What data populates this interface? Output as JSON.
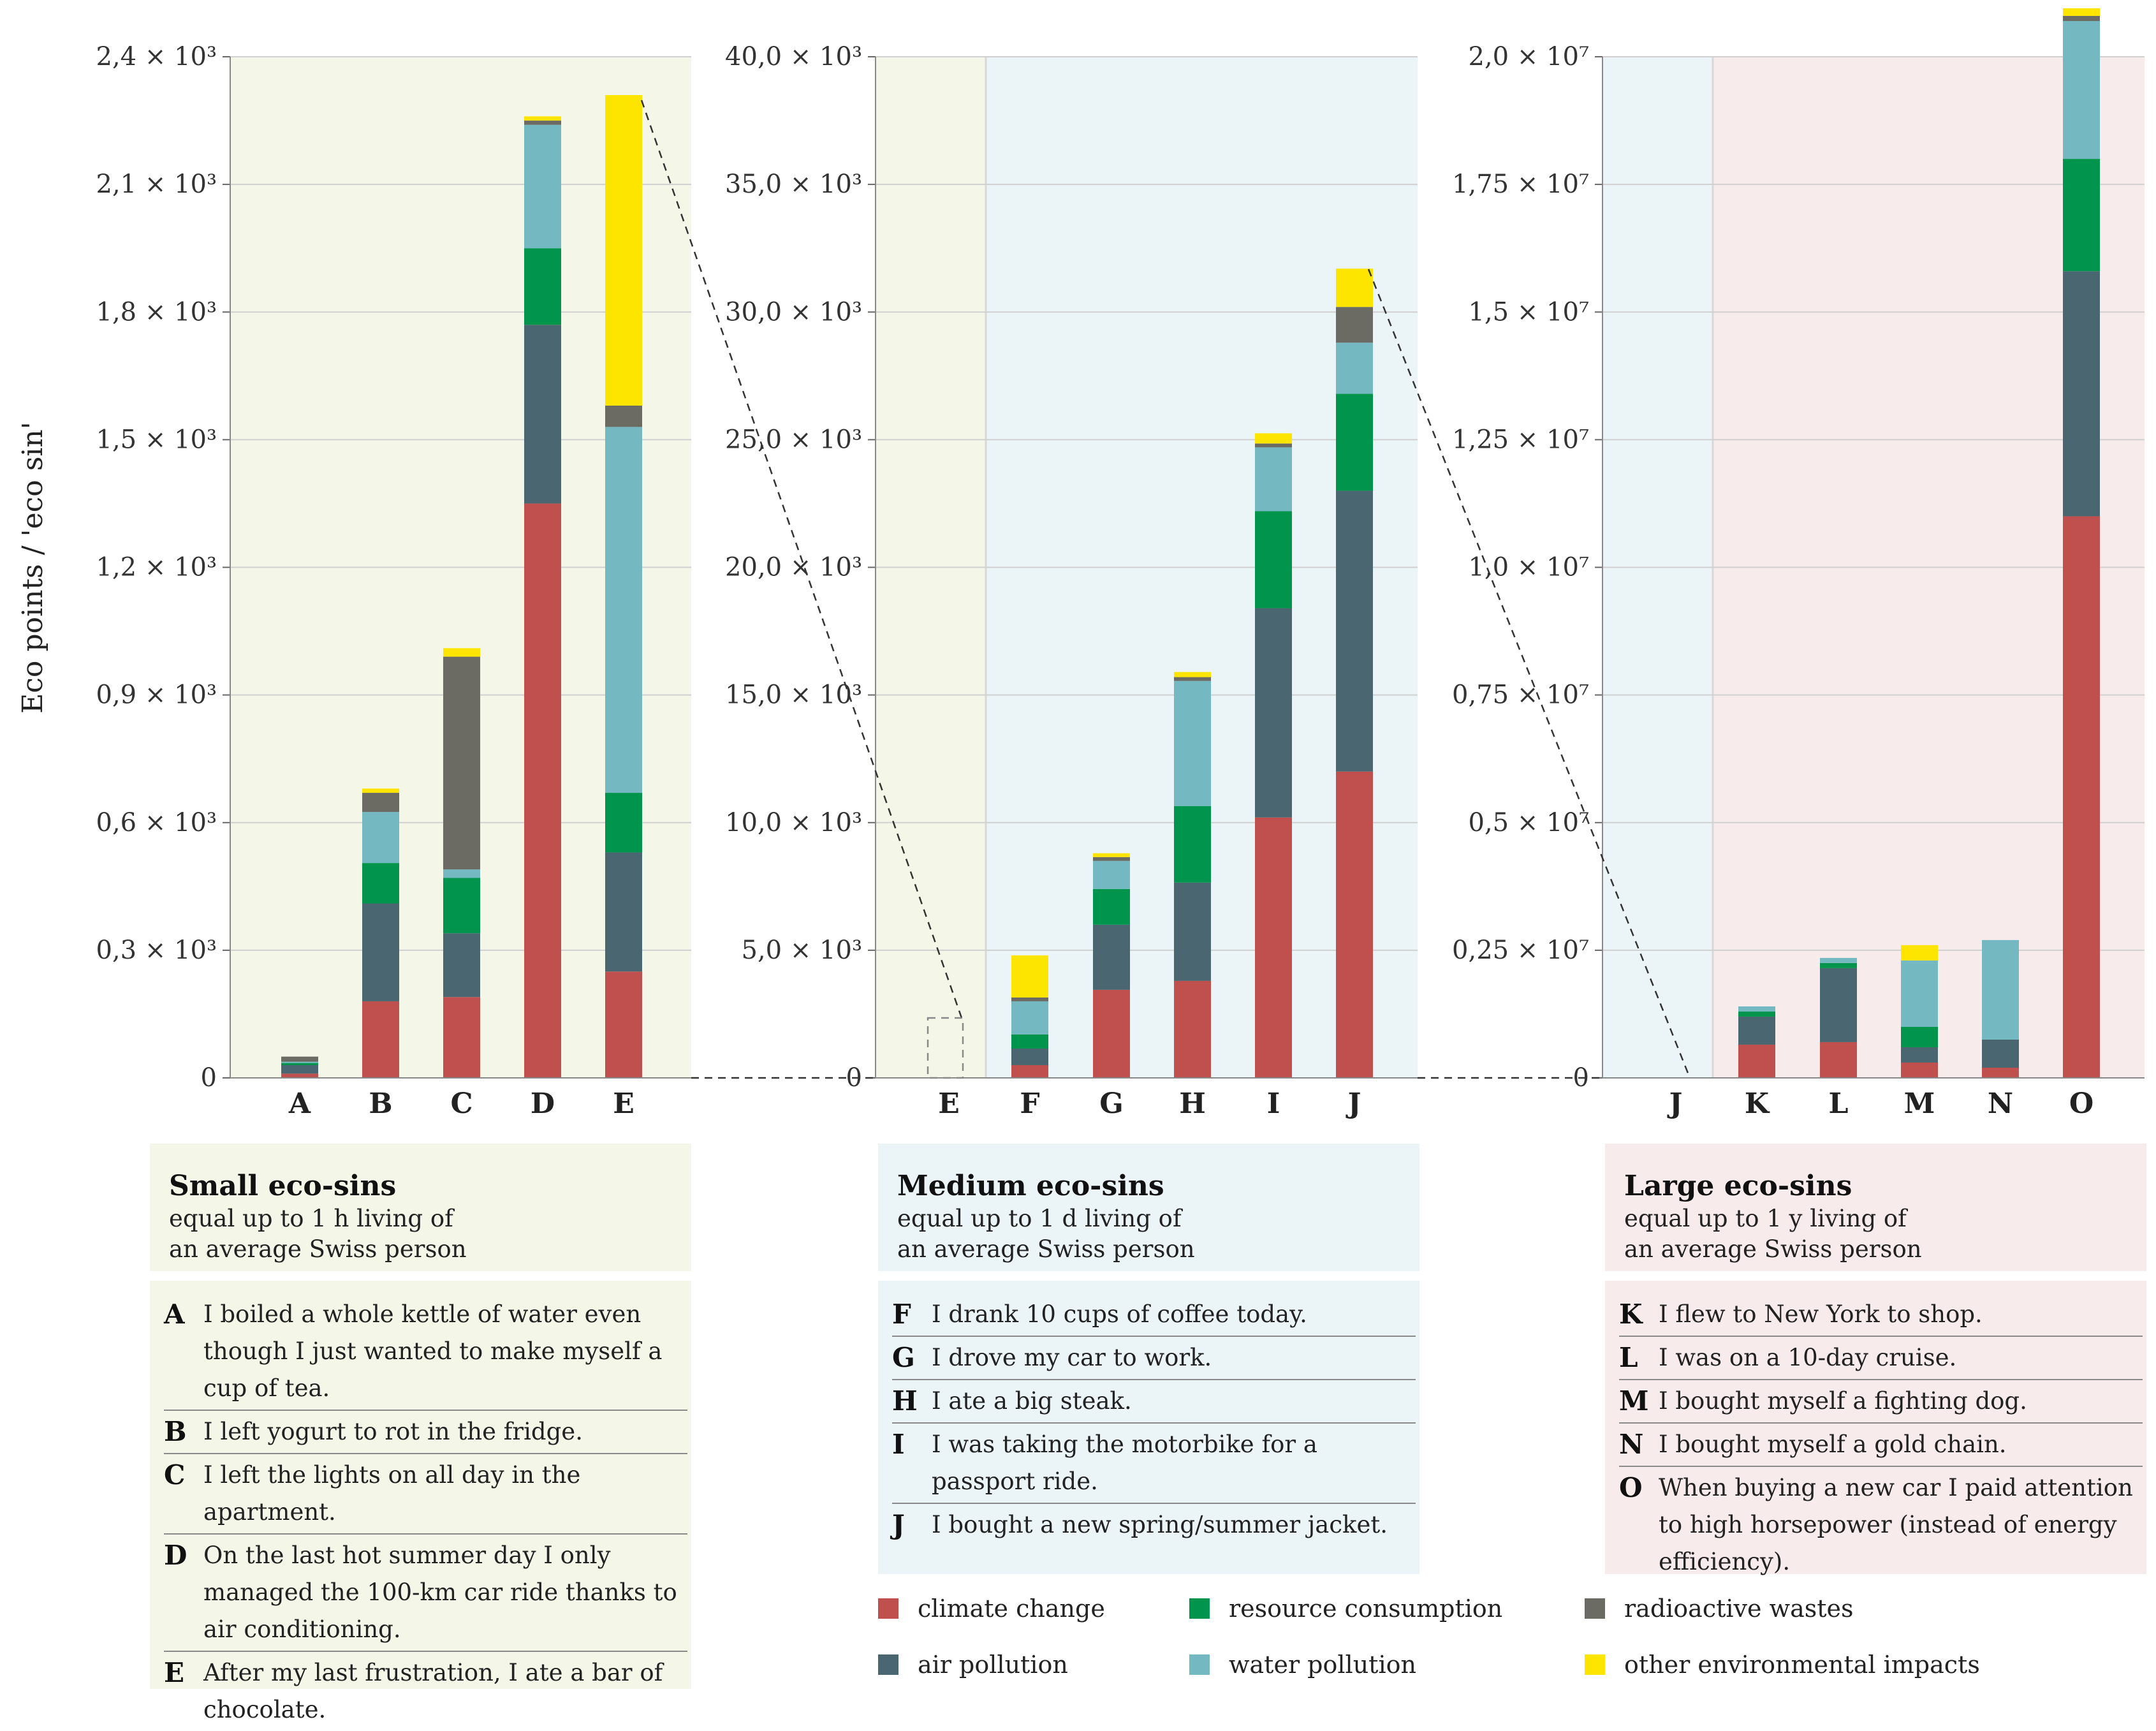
{
  "chart_data": {
    "type": "bar",
    "stacked": true,
    "ylabel": "Eco points / 'eco sin'",
    "series_names": [
      "climate change",
      "air pollution",
      "resource consumption",
      "water pollution",
      "radioactive wastes",
      "other environmental impacts"
    ],
    "colors": {
      "climate change": "#c0504d",
      "air pollution": "#4a6670",
      "resource consumption": "#00944c",
      "water pollution": "#74b9c2",
      "radioactive wastes": "#6b6b64",
      "other environmental impacts": "#fde500"
    },
    "panels": [
      {
        "name": "small",
        "ylim": [
          0,
          2400
        ],
        "ticks": [
          0,
          300,
          600,
          900,
          1200,
          1500,
          1800,
          2100,
          2400
        ],
        "tick_labels": [
          "0",
          "0,3 × 10³",
          "0,6 × 10³",
          "0,9 × 10³",
          "1,2 × 10³",
          "1,5 × 10³",
          "1,8 × 10³",
          "2,1 × 10³",
          "2,4 × 10³"
        ],
        "categories": [
          "A",
          "B",
          "C",
          "D",
          "E"
        ],
        "series": [
          {
            "name": "climate change",
            "values": [
              10,
              180,
              190,
              1350,
              250
            ]
          },
          {
            "name": "air pollution",
            "values": [
              20,
              230,
              150,
              420,
              280
            ]
          },
          {
            "name": "resource consumption",
            "values": [
              5,
              95,
              130,
              180,
              140
            ]
          },
          {
            "name": "water pollution",
            "values": [
              3,
              120,
              20,
              290,
              860
            ]
          },
          {
            "name": "radioactive wastes",
            "values": [
              12,
              45,
              500,
              10,
              50
            ]
          },
          {
            "name": "other environmental impacts",
            "values": [
              0,
              10,
              20,
              10,
              730
            ]
          }
        ]
      },
      {
        "name": "medium",
        "ylim": [
          0,
          40000
        ],
        "ticks": [
          0,
          5000,
          10000,
          15000,
          20000,
          25000,
          30000,
          35000,
          40000
        ],
        "tick_labels": [
          "0",
          "5,0 × 10³",
          "10,0 × 10³",
          "15,0 × 10³",
          "20,0 × 10³",
          "25,0 × 10³",
          "30,0 × 10³",
          "35,0 × 10³",
          "40,0 × 10³"
        ],
        "categories": [
          "E",
          "F",
          "G",
          "H",
          "I",
          "J"
        ],
        "series": [
          {
            "name": "climate change",
            "values": [
              0,
              500,
              3450,
              3800,
              10200,
              12000
            ]
          },
          {
            "name": "air pollution",
            "values": [
              0,
              650,
              2550,
              3850,
              8200,
              11000
            ]
          },
          {
            "name": "resource consumption",
            "values": [
              0,
              550,
              1400,
              3000,
              3800,
              3800
            ]
          },
          {
            "name": "water pollution",
            "values": [
              0,
              1300,
              1100,
              4900,
              2500,
              2000
            ]
          },
          {
            "name": "radioactive wastes",
            "values": [
              0,
              150,
              150,
              150,
              150,
              1400
            ]
          },
          {
            "name": "other environmental impacts",
            "values": [
              0,
              1650,
              150,
              200,
              400,
              1500
            ]
          }
        ]
      },
      {
        "name": "large",
        "ylim": [
          0,
          20000000
        ],
        "ticks": [
          0,
          2500000,
          5000000,
          7500000,
          10000000,
          12500000,
          15000000,
          17500000,
          20000000
        ],
        "tick_labels": [
          "0",
          "0,25 × 10⁷",
          "0,5 × 10⁷",
          "0,75 × 10⁷",
          "1,0 × 10⁷",
          "1,25 × 10⁷",
          "1,5 × 10⁷",
          "1,75 × 10⁷",
          "2,0 × 10⁷"
        ],
        "categories": [
          "J",
          "K",
          "L",
          "M",
          "N",
          "O"
        ],
        "series": [
          {
            "name": "climate change",
            "values": [
              0,
              650000,
              700000,
              300000,
              200000,
              11000000
            ]
          },
          {
            "name": "air pollution",
            "values": [
              0,
              550000,
              1450000,
              300000,
              550000,
              4800000
            ]
          },
          {
            "name": "resource consumption",
            "values": [
              0,
              100000,
              100000,
              400000,
              0,
              2200000
            ]
          },
          {
            "name": "water pollution",
            "values": [
              0,
              100000,
              100000,
              1300000,
              1950000,
              2700000
            ]
          },
          {
            "name": "radioactive wastes",
            "values": [
              0,
              0,
              0,
              0,
              0,
              100000
            ]
          },
          {
            "name": "other environmental impacts",
            "values": [
              0,
              0,
              0,
              300000,
              0,
              150000
            ]
          }
        ]
      }
    ]
  },
  "groups": {
    "small": {
      "title": "Small eco-sins",
      "subtitle_1": "equal up to 1 h living of",
      "subtitle_2": "an average Swiss person",
      "items": [
        {
          "letter": "A",
          "text": "I boiled a whole kettle of water even though I just wanted to make myself a cup of tea."
        },
        {
          "letter": "B",
          "text": "I left yogurt to rot in the fridge."
        },
        {
          "letter": "C",
          "text": "I left the lights on all day in the apartment."
        },
        {
          "letter": "D",
          "text": "On the last hot summer day I only managed the 100-km car ride thanks to air conditioning."
        },
        {
          "letter": "E",
          "text": "After my last frustration, I ate a bar of chocolate."
        }
      ]
    },
    "medium": {
      "title": "Medium eco-sins",
      "subtitle_1": "equal up to 1 d living of",
      "subtitle_2": "an average Swiss person",
      "items": [
        {
          "letter": "F",
          "text": "I drank 10 cups of coffee today."
        },
        {
          "letter": "G",
          "text": "I drove my car to work."
        },
        {
          "letter": "H",
          "text": "I ate a big steak."
        },
        {
          "letter": "I",
          "text": "I was taking the motorbike for a passport ride."
        },
        {
          "letter": "J",
          "text": "I bought a new spring/summer jacket."
        }
      ]
    },
    "large": {
      "title": "Large eco-sins",
      "subtitle_1": "equal up to 1 y living of",
      "subtitle_2": "an average Swiss person",
      "items": [
        {
          "letter": "K",
          "text": "I flew to New York to shop."
        },
        {
          "letter": "L",
          "text": "I was on a 10-day cruise."
        },
        {
          "letter": "M",
          "text": "I bought myself a fighting dog."
        },
        {
          "letter": "N",
          "text": "I bought myself a gold chain."
        },
        {
          "letter": "O",
          "text": "When buying a new car I paid attention to high horsepower (instead of energy efficiency)."
        }
      ]
    }
  },
  "legend": [
    {
      "label": "climate change",
      "color": "#c0504d"
    },
    {
      "label": "air pollution",
      "color": "#4a6670"
    },
    {
      "label": "resource consumption",
      "color": "#00944c"
    },
    {
      "label": "water pollution",
      "color": "#74b9c2"
    },
    {
      "label": "radioactive wastes",
      "color": "#6b6b64"
    },
    {
      "label": "other environmental impacts",
      "color": "#fde500"
    }
  ]
}
